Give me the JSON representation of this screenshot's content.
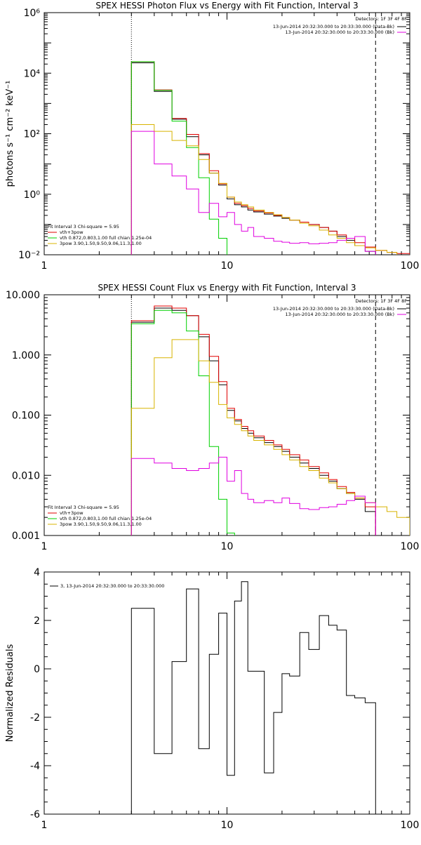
{
  "colors": {
    "black": "#000000",
    "red": "#e00000",
    "green": "#00d000",
    "magenta": "#e000e0",
    "yellow": "#d8b400"
  },
  "chart_data": [
    {
      "type": "line",
      "title": "SPEX HESSI Photon Flux vs Energy with Fit Function, Interval 3",
      "ylabel": "photons s⁻¹ cm⁻² keV⁻¹",
      "xlabel": "",
      "xscale": "log",
      "yscale": "log",
      "xlim": [
        1,
        100
      ],
      "ylim": [
        0.01,
        1000000
      ],
      "xticks": [
        {
          "v": 1,
          "label": "1"
        },
        {
          "v": 10,
          "label": "10"
        },
        {
          "v": 100,
          "label": "100"
        }
      ],
      "yticks": [
        {
          "v": 0.01,
          "label": "10⁻²"
        },
        {
          "v": 1,
          "label": "10⁰"
        },
        {
          "v": 100,
          "label": "10²"
        },
        {
          "v": 10000,
          "label": "10⁴"
        },
        {
          "v": 1000000,
          "label": "10⁶"
        }
      ],
      "vlines": [
        {
          "x": 3.0,
          "style": "dotted"
        },
        {
          "x": 65,
          "style": "dashed"
        }
      ],
      "legend_top_right": {
        "header": "Detectors: 1F 3F 4F 8F",
        "entries": [
          {
            "text": "13-Jun-2014 20:32:30.000 to 20:33:30.000 (Data-Bk)",
            "color": "black"
          },
          {
            "text": "13-Jun-2014 20:32:30.000 to 20:33:30.000 (Bk)",
            "color": "magenta"
          }
        ]
      },
      "legend_bottom_left": {
        "header": "Fit Interval 3   Chi-square = 5.95",
        "entries": [
          {
            "text": "vth+3pow",
            "color": "red"
          },
          {
            "text": "vth 0.872,0.803,1.00  full chian 1.25e-04",
            "color": "green"
          },
          {
            "text": "3pow 3.90,1.50,9.50,9.06,11.3,1.00",
            "color": "yellow"
          }
        ]
      },
      "series": [
        {
          "color": "black",
          "edges": [
            3,
            4,
            5,
            6,
            7,
            8,
            9,
            10,
            11,
            12,
            13,
            14,
            16,
            18,
            20,
            22,
            25,
            28,
            32,
            36,
            40,
            45,
            50,
            57,
            65,
            75,
            100
          ],
          "values": [
            22000,
            2500,
            300,
            80,
            20,
            5,
            2,
            0.7,
            0.45,
            0.38,
            0.3,
            0.26,
            0.22,
            0.19,
            0.16,
            0.14,
            0.12,
            0.1,
            0.08,
            0.06,
            0.04,
            0.03,
            0.02,
            0.013,
            0.009,
            0.007
          ]
        },
        {
          "color": "red",
          "edges": [
            3,
            4,
            5,
            6,
            7,
            8,
            9,
            10,
            11,
            12,
            13,
            14,
            16,
            18,
            20,
            22,
            25,
            28,
            32,
            36,
            40,
            45,
            50,
            57,
            65,
            75,
            85,
            100
          ],
          "values": [
            24000,
            2800,
            320,
            95,
            22,
            6,
            2.2,
            0.8,
            0.5,
            0.42,
            0.34,
            0.28,
            0.24,
            0.2,
            0.17,
            0.14,
            0.12,
            0.1,
            0.08,
            0.06,
            0.045,
            0.035,
            0.025,
            0.018,
            0.014,
            0.012,
            0.011
          ]
        },
        {
          "color": "green",
          "edges": [
            3,
            4,
            5,
            6,
            7,
            8,
            9,
            10
          ],
          "values": [
            24000,
            2700,
            260,
            35,
            3.5,
            0.15,
            0.035
          ]
        },
        {
          "color": "yellow",
          "edges": [
            3,
            4,
            5,
            6,
            7,
            8,
            9,
            10,
            11,
            12,
            13,
            14,
            16,
            18,
            20,
            22,
            25,
            28,
            32,
            36,
            40,
            45,
            50,
            57,
            65,
            75,
            85
          ],
          "values": [
            200,
            120,
            60,
            40,
            14,
            5,
            2.3,
            0.8,
            0.55,
            0.45,
            0.38,
            0.3,
            0.25,
            0.21,
            0.17,
            0.14,
            0.11,
            0.09,
            0.065,
            0.045,
            0.035,
            0.025,
            0.02,
            0.017,
            0.014,
            0.012
          ]
        },
        {
          "color": "magenta",
          "edges": [
            3,
            4,
            5,
            6,
            7,
            8,
            9,
            10,
            11,
            12,
            13,
            14,
            16,
            18,
            20,
            22,
            25,
            28,
            32,
            36,
            40,
            45,
            50,
            57,
            65
          ],
          "values": [
            120,
            10,
            4,
            1.5,
            0.25,
            0.5,
            0.18,
            0.25,
            0.1,
            0.06,
            0.08,
            0.04,
            0.035,
            0.028,
            0.026,
            0.024,
            0.025,
            0.023,
            0.024,
            0.025,
            0.03,
            0.035,
            0.04,
            0.013
          ]
        }
      ]
    },
    {
      "type": "line",
      "title": "SPEX HESSI Count Flux vs Energy with Fit Function, Interval 3",
      "ylabel": "",
      "xlabel": "",
      "xscale": "log",
      "yscale": "log",
      "xlim": [
        1,
        100
      ],
      "ylim": [
        0.001,
        10
      ],
      "xticks": [
        {
          "v": 1,
          "label": "1"
        },
        {
          "v": 10,
          "label": "10"
        },
        {
          "v": 100,
          "label": "100"
        }
      ],
      "yticks": [
        {
          "v": 0.001,
          "label": "0.001"
        },
        {
          "v": 0.01,
          "label": "0.010"
        },
        {
          "v": 0.1,
          "label": "0.100"
        },
        {
          "v": 1,
          "label": "1.000"
        },
        {
          "v": 10,
          "label": "10.000"
        }
      ],
      "vlines": [
        {
          "x": 3.0,
          "style": "dotted"
        },
        {
          "x": 65,
          "style": "dashed"
        }
      ],
      "legend_top_right": {
        "header": "Detectors: 1F 3F 4F 8F",
        "entries": [
          {
            "text": "13-Jun-2014 20:32:30.000 to 20:33:30.000 (Data-Bk)",
            "color": "black"
          },
          {
            "text": "13-Jun-2014 20:32:30.000 to 20:33:30.000 (Bk)",
            "color": "magenta"
          }
        ]
      },
      "legend_bottom_left": {
        "header": "Fit Interval 3   Chi-square = 5.95",
        "entries": [
          {
            "text": "vth+3pow",
            "color": "red"
          },
          {
            "text": "vth 0.872,0.803,1.00  full chian 1.25e-04",
            "color": "green"
          },
          {
            "text": "3pow 3.90,1.50,9.50,9.06,11.3,1.00",
            "color": "yellow"
          }
        ]
      },
      "series": [
        {
          "color": "black",
          "edges": [
            3,
            4,
            5,
            6,
            7,
            8,
            9,
            10,
            11,
            12,
            13,
            14,
            16,
            18,
            20,
            22,
            25,
            28,
            32,
            36,
            40,
            45,
            50,
            57,
            65
          ],
          "values": [
            3.5,
            6.0,
            5.5,
            4.5,
            2.0,
            0.8,
            0.32,
            0.12,
            0.08,
            0.06,
            0.05,
            0.042,
            0.035,
            0.03,
            0.025,
            0.02,
            0.016,
            0.013,
            0.01,
            0.008,
            0.006,
            0.005,
            0.004,
            0.0025
          ]
        },
        {
          "color": "red",
          "edges": [
            3,
            4,
            5,
            6,
            7,
            8,
            9,
            10,
            11,
            12,
            13,
            14,
            16,
            18,
            20,
            22,
            25,
            28,
            32,
            36,
            40,
            45,
            50,
            57,
            65
          ],
          "values": [
            3.7,
            6.5,
            6.0,
            4.5,
            2.2,
            0.95,
            0.36,
            0.13,
            0.085,
            0.065,
            0.055,
            0.045,
            0.038,
            0.032,
            0.027,
            0.022,
            0.018,
            0.014,
            0.011,
            0.0085,
            0.0065,
            0.0052,
            0.0042,
            0.003
          ]
        },
        {
          "color": "green",
          "edges": [
            3,
            4,
            5,
            6,
            7,
            8,
            9,
            10,
            11
          ],
          "values": [
            3.3,
            5.5,
            5.0,
            2.5,
            0.45,
            0.03,
            0.004,
            0.0011
          ]
        },
        {
          "color": "yellow",
          "edges": [
            3,
            4,
            5,
            6,
            7,
            8,
            9,
            10,
            11,
            12,
            13,
            14,
            16,
            18,
            20,
            22,
            25,
            28,
            32,
            36,
            40,
            45,
            50,
            57,
            65,
            75,
            85,
            100
          ],
          "values": [
            0.13,
            0.9,
            1.8,
            1.8,
            0.8,
            0.35,
            0.15,
            0.09,
            0.07,
            0.055,
            0.045,
            0.038,
            0.032,
            0.027,
            0.022,
            0.018,
            0.014,
            0.012,
            0.009,
            0.0075,
            0.006,
            0.005,
            0.0042,
            0.0035,
            0.003,
            0.0025,
            0.002
          ]
        },
        {
          "color": "magenta",
          "edges": [
            3,
            4,
            5,
            6,
            7,
            8,
            9,
            10,
            11,
            12,
            13,
            14,
            16,
            18,
            20,
            22,
            25,
            28,
            32,
            36,
            40,
            45,
            50,
            57,
            65
          ],
          "values": [
            0.019,
            0.016,
            0.013,
            0.012,
            0.013,
            0.016,
            0.02,
            0.008,
            0.012,
            0.005,
            0.004,
            0.0035,
            0.0038,
            0.0035,
            0.0042,
            0.0034,
            0.0028,
            0.0027,
            0.0029,
            0.003,
            0.0033,
            0.0038,
            0.0045,
            0.0035
          ]
        }
      ]
    },
    {
      "type": "line",
      "title": "",
      "ylabel": "Normalized Residuals",
      "xlabel": "",
      "xscale": "log",
      "yscale": "linear",
      "xlim": [
        1,
        100
      ],
      "ylim": [
        -6,
        4
      ],
      "xticks": [
        {
          "v": 1,
          "label": "1"
        },
        {
          "v": 10,
          "label": "10"
        },
        {
          "v": 100,
          "label": "100"
        }
      ],
      "yticks": [
        {
          "v": -6,
          "label": "-6"
        },
        {
          "v": -4,
          "label": "-4"
        },
        {
          "v": -2,
          "label": "-2"
        },
        {
          "v": 0,
          "label": "0"
        },
        {
          "v": 2,
          "label": "2"
        },
        {
          "v": 4,
          "label": "4"
        }
      ],
      "vlines": [],
      "legend_top_right": null,
      "legend_top_left": {
        "entries": [
          {
            "text": "3, 13-Jun-2014 20:32:30.000 to 20:33:30.000",
            "color": "black"
          }
        ]
      },
      "legend_bottom_left": null,
      "series": [
        {
          "color": "black",
          "edges": [
            3,
            4,
            5,
            6,
            7,
            8,
            9,
            10,
            11,
            12,
            13,
            14,
            16,
            18,
            20,
            22,
            25,
            28,
            32,
            36,
            40,
            45,
            50,
            57,
            65
          ],
          "values": [
            2.5,
            -3.5,
            0.3,
            3.3,
            -3.3,
            0.6,
            2.3,
            -4.4,
            2.8,
            3.6,
            -0.1,
            -0.1,
            -4.3,
            -1.8,
            -0.2,
            -0.3,
            1.5,
            0.8,
            2.2,
            1.8,
            1.6,
            -1.1,
            -1.2,
            -1.4
          ]
        }
      ]
    }
  ]
}
